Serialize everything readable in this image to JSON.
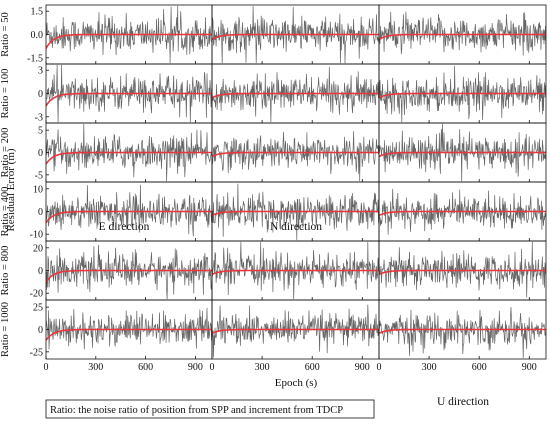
{
  "chart_data": {
    "type": "line",
    "ylabel": "Residual Error (m)",
    "xlabel": "Epoch (s)",
    "x_ticks": [
      0,
      300,
      600,
      900
    ],
    "x_range": [
      0,
      1000
    ],
    "columns": [
      "E direction",
      "N direction",
      "U direction"
    ],
    "rows": [
      {
        "label": "Ratio = 50",
        "ylim": [
          -1.9,
          1.9
        ],
        "y_ticks": [
          -1.5,
          0.0,
          1.5
        ],
        "y_tick_labels": [
          "-1.5",
          "0.0",
          "1.5"
        ],
        "noise_amplitude": 1.3,
        "filtered_start": -0.9
      },
      {
        "label": "Ratio = 100",
        "ylim": [
          -3.8,
          3.8
        ],
        "y_ticks": [
          -3,
          0,
          3
        ],
        "y_tick_labels": [
          "-3",
          "0",
          "3"
        ],
        "noise_amplitude": 2.5,
        "filtered_start": -1.6
      },
      {
        "label": "Ratio = 200",
        "ylim": [
          -6.6,
          6.6
        ],
        "y_ticks": [
          -5,
          0,
          5
        ],
        "y_tick_labels": [
          "-5",
          "0",
          "5"
        ],
        "noise_amplitude": 4.3,
        "filtered_start": -2.6
      },
      {
        "label": "Ratio = 400",
        "ylim": [
          -13,
          13
        ],
        "y_ticks": [
          -10,
          0,
          10
        ],
        "y_tick_labels": [
          "-10",
          "0",
          "10"
        ],
        "noise_amplitude": 8.5,
        "filtered_start": -5.0
      },
      {
        "label": "Ratio = 800",
        "ylim": [
          -26,
          26
        ],
        "y_ticks": [
          -20,
          0,
          20
        ],
        "y_tick_labels": [
          "-20",
          "0",
          "20"
        ],
        "noise_amplitude": 17,
        "filtered_start": -10
      },
      {
        "label": "Ratio = 1000",
        "ylim": [
          -33,
          33
        ],
        "y_ticks": [
          -25,
          0,
          25
        ],
        "y_tick_labels": [
          "-25",
          "0",
          "25"
        ],
        "noise_amplitude": 21,
        "filtered_start": -12
      }
    ],
    "series": [
      {
        "color": "#666666",
        "description_note": ""
      },
      {
        "color": "#e8383d"
      }
    ],
    "note": "Ratio: the noise ratio of position from SPP and increment from TDCP"
  }
}
